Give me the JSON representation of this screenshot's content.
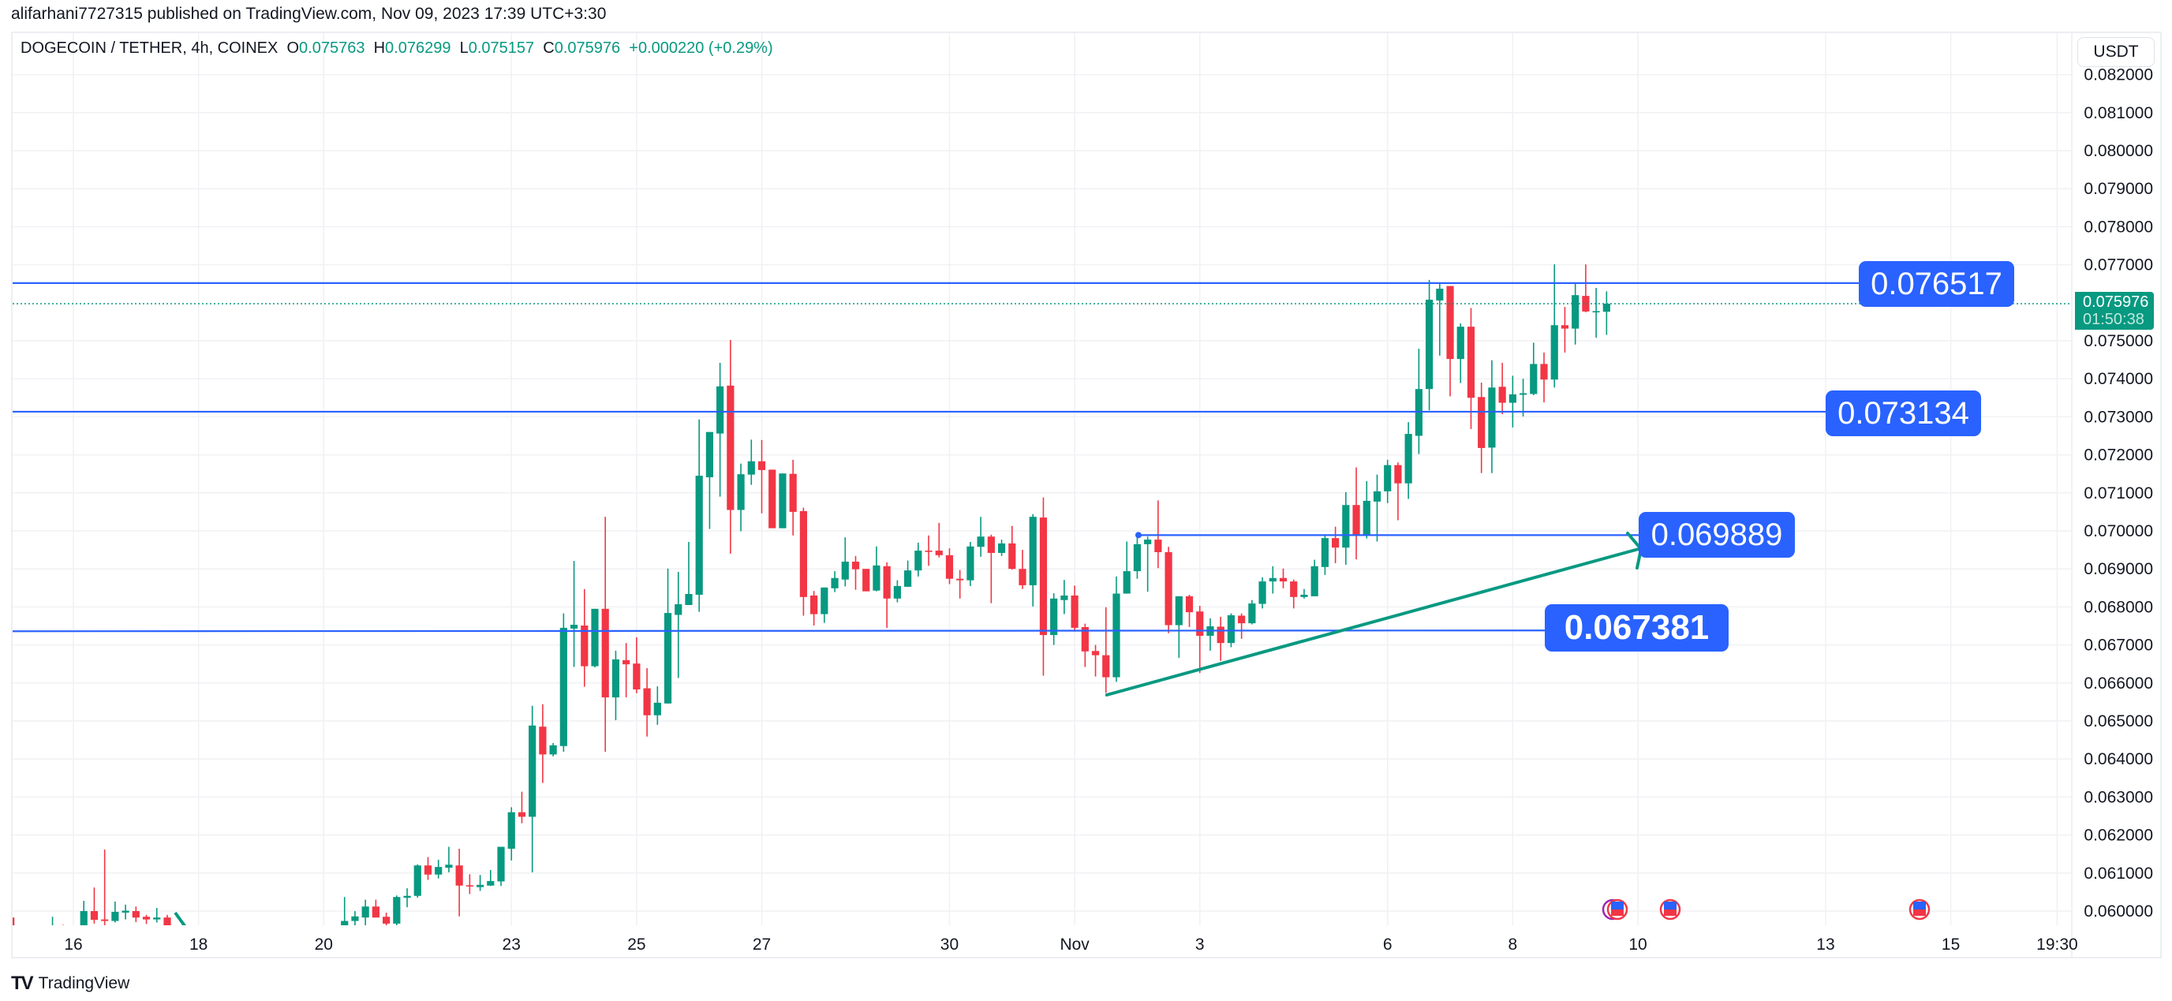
{
  "header": {
    "published": "alifarhani7727315 published on TradingView.com, Nov 09, 2023 17:39 UTC+3:30"
  },
  "legend": {
    "symbol": "DOGECOIN / TETHER, 4h, COINEX",
    "o_label": "O",
    "o": "0.075763",
    "h_label": "H",
    "h": "0.076299",
    "l_label": "L",
    "l": "0.075157",
    "c_label": "C",
    "c": "0.075976",
    "change": "+0.000220 (+0.29%)"
  },
  "currency_button": "USDT",
  "current_price": {
    "value": "0.075976",
    "countdown": "01:50:38"
  },
  "drawings": {
    "level_1": "0.076517",
    "level_2": "0.073134",
    "level_3": "0.069889",
    "level_4": "0.067381"
  },
  "footer": {
    "brand": "TradingView"
  },
  "colors": {
    "up": "#089981",
    "down": "#f23645",
    "drawing": "#2962ff",
    "trend": "#089981"
  },
  "chart_data": {
    "type": "candlestick",
    "title": "DOGECOIN / TETHER, 4h, COINEX",
    "bar_hours": 4,
    "start": "Oct 16",
    "ylim": [
      0.0597,
      0.0825
    ],
    "y_ticks": [
      "0.082000",
      "0.081000",
      "0.080000",
      "0.079000",
      "0.078000",
      "0.077000",
      "0.075000",
      "0.074000",
      "0.073000",
      "0.072000",
      "0.071000",
      "0.070000",
      "0.069000",
      "0.068000",
      "0.067000",
      "0.066000",
      "0.065000",
      "0.064000",
      "0.063000",
      "0.062000",
      "0.061000",
      "0.060000"
    ],
    "x_ticks": [
      {
        "label": "16",
        "day": 0
      },
      {
        "label": "18",
        "day": 2
      },
      {
        "label": "20",
        "day": 4
      },
      {
        "label": "23",
        "day": 7
      },
      {
        "label": "25",
        "day": 9
      },
      {
        "label": "27",
        "day": 11
      },
      {
        "label": "30",
        "day": 14
      },
      {
        "label": "Nov",
        "day": 16
      },
      {
        "label": "3",
        "day": 18
      },
      {
        "label": "6",
        "day": 21
      },
      {
        "label": "8",
        "day": 23
      },
      {
        "label": "10",
        "day": 25
      },
      {
        "label": "13",
        "day": 28
      },
      {
        "label": "15",
        "day": 30
      },
      {
        "label": "19:30",
        "day": 31.7
      }
    ],
    "horizontal_levels": [
      0.076517,
      0.073134,
      0.069889,
      0.067381
    ],
    "trend_line": {
      "from": {
        "bar": 99,
        "price": 0.0657
      },
      "to": {
        "bar": 150,
        "price": 0.06955
      }
    },
    "candles_fields": [
      "bar",
      "open",
      "high",
      "low",
      "close"
    ],
    "candles": [
      [
        -6,
        0.05983,
        0.0599,
        0.0594,
        0.0595
      ],
      [
        -2,
        0.0595,
        0.05985,
        0.0594,
        0.0596
      ],
      [
        -1,
        0.0596,
        0.05964,
        0.0594,
        0.0595
      ],
      [
        1,
        0.0595,
        0.06027,
        0.0594,
        0.06
      ],
      [
        2,
        0.06,
        0.06062,
        0.05967,
        0.05977
      ],
      [
        3,
        0.05978,
        0.06162,
        0.0595,
        0.05974
      ],
      [
        4,
        0.05974,
        0.06025,
        0.0597,
        0.05998
      ],
      [
        5,
        0.05996,
        0.06017,
        0.05978,
        0.06001
      ],
      [
        6,
        0.06,
        0.06012,
        0.05971,
        0.05983
      ],
      [
        7,
        0.05985,
        0.0599,
        0.05966,
        0.05978
      ],
      [
        8,
        0.05978,
        0.06008,
        0.0597,
        0.05983
      ],
      [
        9,
        0.05983,
        0.0599,
        0.0592,
        0.0593
      ],
      [
        26,
        0.0594,
        0.06037,
        0.0593,
        0.05974
      ],
      [
        27,
        0.05974,
        0.06,
        0.0594,
        0.05986
      ],
      [
        28,
        0.05983,
        0.0603,
        0.0596,
        0.06012
      ],
      [
        29,
        0.06012,
        0.0603,
        0.05983,
        0.05983
      ],
      [
        30,
        0.05985,
        0.05996,
        0.0594,
        0.05967
      ],
      [
        31,
        0.05967,
        0.06041,
        0.0595,
        0.06037
      ],
      [
        32,
        0.06035,
        0.0606,
        0.0601,
        0.0604
      ],
      [
        33,
        0.0604,
        0.06123,
        0.06035,
        0.0612
      ],
      [
        34,
        0.0612,
        0.06142,
        0.06082,
        0.06096
      ],
      [
        35,
        0.06096,
        0.06135,
        0.06086,
        0.06116
      ],
      [
        36,
        0.06114,
        0.06169,
        0.06102,
        0.06122
      ],
      [
        37,
        0.0612,
        0.06164,
        0.05986,
        0.06067
      ],
      [
        38,
        0.06068,
        0.06097,
        0.06045,
        0.06066
      ],
      [
        39,
        0.06063,
        0.06095,
        0.06053,
        0.06069
      ],
      [
        40,
        0.06067,
        0.06108,
        0.06066,
        0.06079
      ],
      [
        41,
        0.06078,
        0.06169,
        0.06066,
        0.06169
      ],
      [
        42,
        0.06164,
        0.06273,
        0.06133,
        0.0626
      ],
      [
        43,
        0.0626,
        0.06314,
        0.06231,
        0.06248
      ],
      [
        44,
        0.06248,
        0.0654,
        0.06102,
        0.06488
      ],
      [
        45,
        0.06485,
        0.06544,
        0.06337,
        0.06412
      ],
      [
        46,
        0.06412,
        0.06442,
        0.06407,
        0.06436
      ],
      [
        47,
        0.06434,
        0.06783,
        0.06419,
        0.06745
      ],
      [
        48,
        0.06743,
        0.06921,
        0.06642,
        0.06753
      ],
      [
        49,
        0.06751,
        0.06847,
        0.0659,
        0.06644
      ],
      [
        50,
        0.06644,
        0.06795,
        0.06641,
        0.06795
      ],
      [
        51,
        0.06795,
        0.07037,
        0.06419,
        0.06562
      ],
      [
        52,
        0.06562,
        0.06685,
        0.06502,
        0.06662
      ],
      [
        53,
        0.0666,
        0.06705,
        0.06562,
        0.06649
      ],
      [
        54,
        0.06651,
        0.0672,
        0.06573,
        0.06583
      ],
      [
        55,
        0.06586,
        0.06639,
        0.06459,
        0.06515
      ],
      [
        56,
        0.06515,
        0.06591,
        0.0649,
        0.06548
      ],
      [
        57,
        0.06546,
        0.06901,
        0.06546,
        0.06784
      ],
      [
        58,
        0.06779,
        0.06892,
        0.06613,
        0.06807
      ],
      [
        59,
        0.06805,
        0.06971,
        0.06805,
        0.06834
      ],
      [
        60,
        0.06832,
        0.07293,
        0.06787,
        0.07145
      ],
      [
        61,
        0.07141,
        0.0726,
        0.07005,
        0.0726
      ],
      [
        62,
        0.07256,
        0.07442,
        0.0709,
        0.0738
      ],
      [
        63,
        0.07382,
        0.07502,
        0.0694,
        0.07055
      ],
      [
        64,
        0.07055,
        0.07177,
        0.06999,
        0.07149
      ],
      [
        65,
        0.07148,
        0.0724,
        0.07121,
        0.07183
      ],
      [
        66,
        0.07183,
        0.07239,
        0.07046,
        0.0716
      ],
      [
        67,
        0.07161,
        0.07161,
        0.07007,
        0.07007
      ],
      [
        68,
        0.07007,
        0.07151,
        0.07007,
        0.07151
      ],
      [
        69,
        0.0715,
        0.07187,
        0.06988,
        0.0705
      ],
      [
        70,
        0.07052,
        0.07061,
        0.06777,
        0.06826
      ],
      [
        71,
        0.0683,
        0.06842,
        0.06751,
        0.06781
      ],
      [
        72,
        0.06781,
        0.06851,
        0.06758,
        0.06851
      ],
      [
        73,
        0.06849,
        0.06894,
        0.06839,
        0.06876
      ],
      [
        74,
        0.06872,
        0.06983,
        0.06854,
        0.06919
      ],
      [
        75,
        0.06919,
        0.06934,
        0.06845,
        0.06899
      ],
      [
        76,
        0.069,
        0.069,
        0.06841,
        0.06841
      ],
      [
        77,
        0.06843,
        0.06959,
        0.06841,
        0.06909
      ],
      [
        78,
        0.06907,
        0.06917,
        0.06745,
        0.06822
      ],
      [
        79,
        0.06822,
        0.0687,
        0.06812,
        0.06855
      ],
      [
        80,
        0.06853,
        0.06922,
        0.06853,
        0.06896
      ],
      [
        81,
        0.06896,
        0.06969,
        0.0688,
        0.06948
      ],
      [
        82,
        0.06948,
        0.06988,
        0.06908,
        0.06945
      ],
      [
        83,
        0.06948,
        0.07021,
        0.0693,
        0.06936
      ],
      [
        84,
        0.06936,
        0.06954,
        0.0686,
        0.06874
      ],
      [
        85,
        0.06874,
        0.06897,
        0.06822,
        0.0687
      ],
      [
        86,
        0.0687,
        0.06971,
        0.06855,
        0.06959
      ],
      [
        87,
        0.06958,
        0.07037,
        0.06932,
        0.06985
      ],
      [
        88,
        0.06985,
        0.0699,
        0.0681,
        0.06942
      ],
      [
        89,
        0.06942,
        0.06977,
        0.06934,
        0.06967
      ],
      [
        90,
        0.06967,
        0.07013,
        0.06898,
        0.069
      ],
      [
        91,
        0.069,
        0.0695,
        0.06847,
        0.06857
      ],
      [
        92,
        0.06857,
        0.07044,
        0.06801,
        0.07037
      ],
      [
        93,
        0.07035,
        0.07088,
        0.06619,
        0.06726
      ],
      [
        94,
        0.06726,
        0.06836,
        0.067,
        0.06822
      ],
      [
        95,
        0.06818,
        0.06871,
        0.06781,
        0.0683
      ],
      [
        96,
        0.0683,
        0.06856,
        0.06735,
        0.06745
      ],
      [
        97,
        0.06747,
        0.06756,
        0.06642,
        0.06683
      ],
      [
        98,
        0.06684,
        0.067,
        0.06617,
        0.06673
      ],
      [
        99,
        0.06673,
        0.06799,
        0.06574,
        0.06615
      ],
      [
        100,
        0.06615,
        0.0688,
        0.06603,
        0.06835
      ],
      [
        101,
        0.06835,
        0.06972,
        0.06835,
        0.06894
      ],
      [
        102,
        0.06894,
        0.0699,
        0.06874,
        0.06965
      ],
      [
        103,
        0.06965,
        0.06985,
        0.0684,
        0.06977
      ],
      [
        104,
        0.06977,
        0.0708,
        0.06902,
        0.06944
      ],
      [
        105,
        0.06944,
        0.06958,
        0.06731,
        0.06752
      ],
      [
        106,
        0.06752,
        0.06828,
        0.06666,
        0.06828
      ],
      [
        107,
        0.06828,
        0.06832,
        0.06747,
        0.06786
      ],
      [
        108,
        0.06788,
        0.06803,
        0.06626,
        0.06724
      ],
      [
        109,
        0.06724,
        0.0677,
        0.06685,
        0.06749
      ],
      [
        110,
        0.06748,
        0.06774,
        0.06658,
        0.06705
      ],
      [
        111,
        0.06705,
        0.06783,
        0.06694,
        0.06778
      ],
      [
        112,
        0.06777,
        0.06783,
        0.06716,
        0.06757
      ],
      [
        113,
        0.06757,
        0.06818,
        0.06754,
        0.06809
      ],
      [
        114,
        0.06808,
        0.06878,
        0.06796,
        0.06867
      ],
      [
        115,
        0.06867,
        0.06907,
        0.06835,
        0.06876
      ],
      [
        116,
        0.06876,
        0.06901,
        0.06849,
        0.06867
      ],
      [
        117,
        0.06867,
        0.06872,
        0.06796,
        0.06826
      ],
      [
        118,
        0.06826,
        0.06847,
        0.06822,
        0.06832
      ],
      [
        119,
        0.06828,
        0.06924,
        0.06828,
        0.06907
      ],
      [
        120,
        0.06905,
        0.0699,
        0.06884,
        0.06981
      ],
      [
        121,
        0.06981,
        0.07011,
        0.06915,
        0.06956
      ],
      [
        122,
        0.06956,
        0.07102,
        0.06911,
        0.07068
      ],
      [
        123,
        0.07068,
        0.07167,
        0.06925,
        0.06989
      ],
      [
        124,
        0.06989,
        0.07131,
        0.0698,
        0.07079
      ],
      [
        125,
        0.07077,
        0.07148,
        0.06972,
        0.07104
      ],
      [
        126,
        0.07104,
        0.07187,
        0.07073,
        0.07173
      ],
      [
        127,
        0.07173,
        0.0718,
        0.07028,
        0.07125
      ],
      [
        128,
        0.07125,
        0.07286,
        0.07084,
        0.07255
      ],
      [
        129,
        0.0725,
        0.07479,
        0.07202,
        0.07373
      ],
      [
        130,
        0.07373,
        0.0766,
        0.07317,
        0.07608
      ],
      [
        131,
        0.07606,
        0.0765,
        0.07461,
        0.07637
      ],
      [
        132,
        0.07644,
        0.07644,
        0.07354,
        0.07452
      ],
      [
        133,
        0.07452,
        0.07546,
        0.07389,
        0.07537
      ],
      [
        134,
        0.07537,
        0.07586,
        0.07268,
        0.0735
      ],
      [
        135,
        0.07352,
        0.0739,
        0.07152,
        0.07218
      ],
      [
        136,
        0.07219,
        0.07449,
        0.07152,
        0.07377
      ],
      [
        137,
        0.07379,
        0.07442,
        0.07307,
        0.07337
      ],
      [
        138,
        0.07337,
        0.07408,
        0.07272,
        0.07359
      ],
      [
        139,
        0.07358,
        0.074,
        0.07301,
        0.07362
      ],
      [
        140,
        0.0736,
        0.07495,
        0.07357,
        0.07439
      ],
      [
        141,
        0.07439,
        0.07469,
        0.07338,
        0.07398
      ],
      [
        142,
        0.07398,
        0.07701,
        0.07377,
        0.07541
      ],
      [
        143,
        0.07541,
        0.07589,
        0.07469,
        0.07532
      ],
      [
        144,
        0.07532,
        0.07653,
        0.0749,
        0.0762
      ],
      [
        145,
        0.07618,
        0.07701,
        0.07575,
        0.07577
      ],
      [
        146,
        0.07577,
        0.07639,
        0.07508,
        0.07578
      ],
      [
        147,
        0.075763,
        0.076299,
        0.075157,
        0.075976
      ]
    ]
  }
}
